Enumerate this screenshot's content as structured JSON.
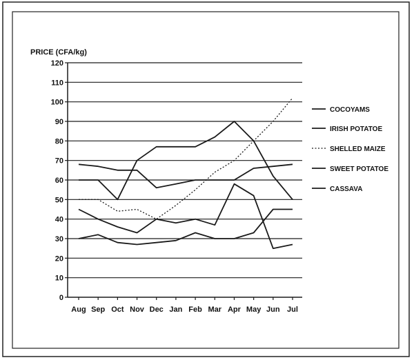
{
  "chart_data": {
    "type": "line",
    "title": "",
    "xlabel": "",
    "ylabel": "PRICE (CFA/kg)",
    "ylim": [
      0,
      120
    ],
    "yticks": [
      0,
      10,
      20,
      30,
      40,
      50,
      60,
      70,
      80,
      90,
      100,
      110,
      120
    ],
    "grid": "horizontal",
    "legend_position": "right",
    "categories": [
      "Aug",
      "Sep",
      "Oct",
      "Nov",
      "Dec",
      "Jan",
      "Feb",
      "Mar",
      "Apr",
      "May",
      "Jun",
      "Jul"
    ],
    "series": [
      {
        "name": "COCOYAMS",
        "style": "solid",
        "values": [
          68,
          67,
          65,
          65,
          56,
          58,
          60,
          60,
          60,
          66,
          67,
          68
        ]
      },
      {
        "name": "IRISH POTATOE",
        "style": "solid",
        "values": [
          60,
          60,
          50,
          70,
          77,
          77,
          77,
          82,
          90,
          80,
          62,
          50
        ]
      },
      {
        "name": "SHELLED MAIZE",
        "style": "dotted",
        "values": [
          50,
          50,
          44,
          45,
          40,
          47,
          55,
          64,
          70,
          80,
          90,
          102
        ]
      },
      {
        "name": "SWEET POTATOE",
        "style": "solid",
        "values": [
          45,
          40,
          36,
          33,
          40,
          38,
          40,
          37,
          58,
          52,
          25,
          27
        ]
      },
      {
        "name": "CASSAVA",
        "style": "solid",
        "values": [
          30,
          32,
          28,
          27,
          28,
          29,
          33,
          30,
          30,
          33,
          45,
          45
        ]
      }
    ]
  },
  "colors": {
    "line": "#1a1a1a",
    "grid": "#1a1a1a",
    "frame": "#222222",
    "background": "#ffffff"
  }
}
